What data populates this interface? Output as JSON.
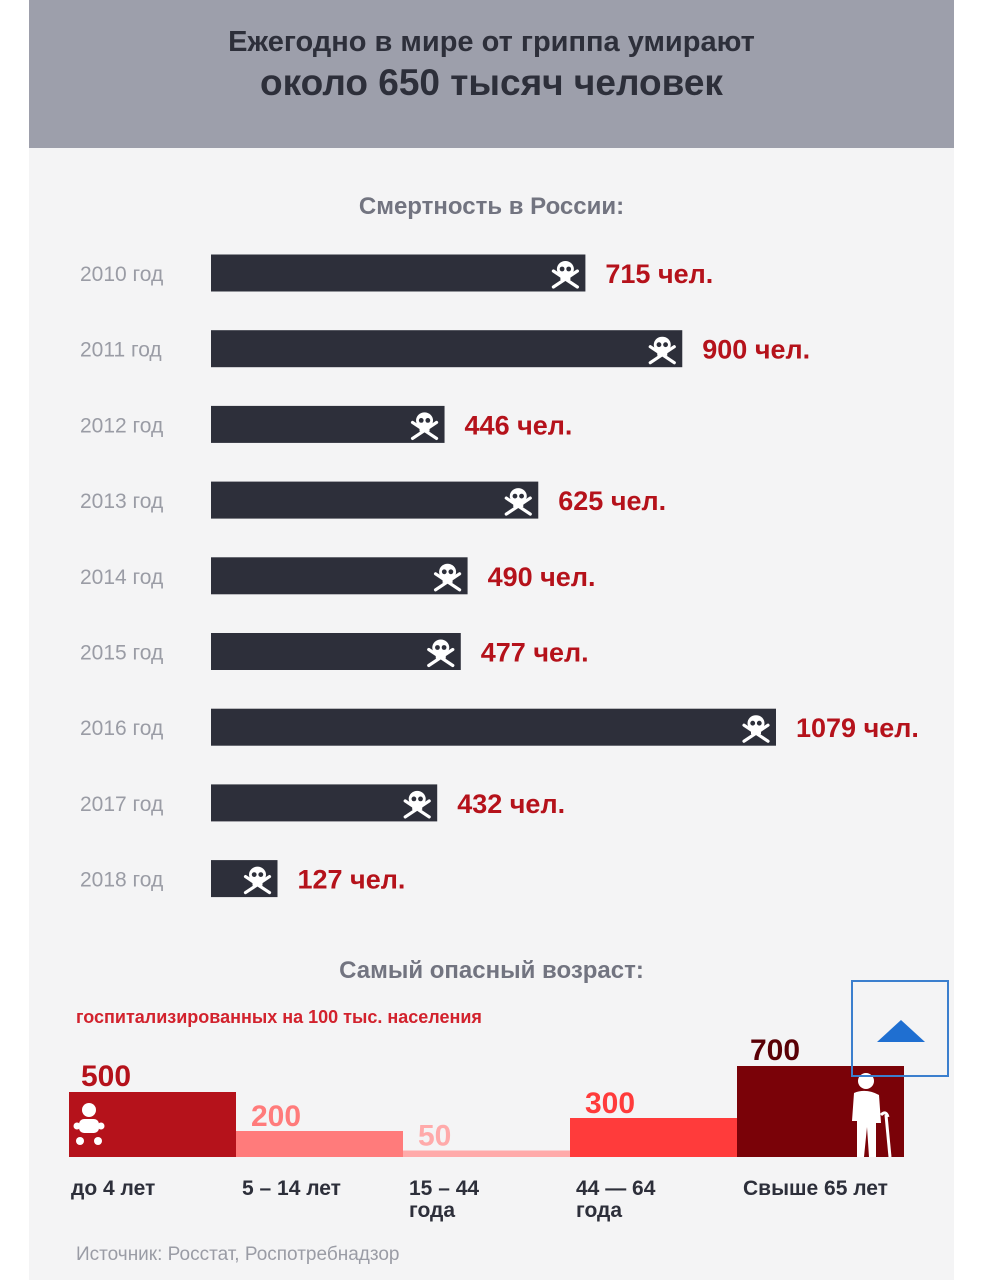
{
  "header": {
    "line1": "Ежегодно в мире от гриппа умирают",
    "line2": "около 650 тысяч человек"
  },
  "russia_title": "Смертность в России:",
  "age_title": "Самый опасный возраст:",
  "age_subtitle": "госпитализированных на 100 тыс. населения",
  "source": "Источник: Росстат, Роспотребнадзор",
  "colors": {
    "bar": "#2d2f3a",
    "value_red": "#b5121b",
    "year_gray": "#9a9ca5",
    "age_colors": [
      "#b5121b",
      "#ff7b7b",
      "#ffaaaa",
      "#ff3b3b",
      "#7a0208"
    ]
  },
  "icons": {
    "death": "skull-crossbones-icon",
    "baby": "baby-icon",
    "elder": "elderly-person-icon",
    "scroll": "triangle-up-icon"
  },
  "chart_data": [
    {
      "type": "bar",
      "orientation": "horizontal",
      "title": "Смертность в России:",
      "categories": [
        "2010 год",
        "2011 год",
        "2012 год",
        "2013 год",
        "2014 год",
        "2015 год",
        "2016 год",
        "2017 год",
        "2018 год"
      ],
      "values": [
        715,
        900,
        446,
        625,
        490,
        477,
        1079,
        432,
        127
      ],
      "value_labels": [
        "715 чел.",
        "900 чел.",
        "446 чел.",
        "625 чел.",
        "490 чел.",
        "477 чел.",
        "1079 чел.",
        "432 чел.",
        "127 чел."
      ],
      "xlim": [
        0,
        1079
      ],
      "grid": false
    },
    {
      "type": "bar",
      "title": "Самый опасный возраст:",
      "subtitle": "госпитализированных на 100 тыс. населения",
      "categories": [
        "до 4 лет",
        "5 – 14 лет",
        "15 – 44 года",
        "44 — 64 года",
        "Свыше 65 лет"
      ],
      "category_lines": [
        [
          "до 4 лет"
        ],
        [
          "5 – 14 лет"
        ],
        [
          "15 – 44",
          "года"
        ],
        [
          "44 — 64",
          "года"
        ],
        [
          "Свыше 65 лет"
        ]
      ],
      "values": [
        500,
        200,
        50,
        300,
        700
      ],
      "ylim": [
        0,
        700
      ],
      "grid": false
    }
  ]
}
